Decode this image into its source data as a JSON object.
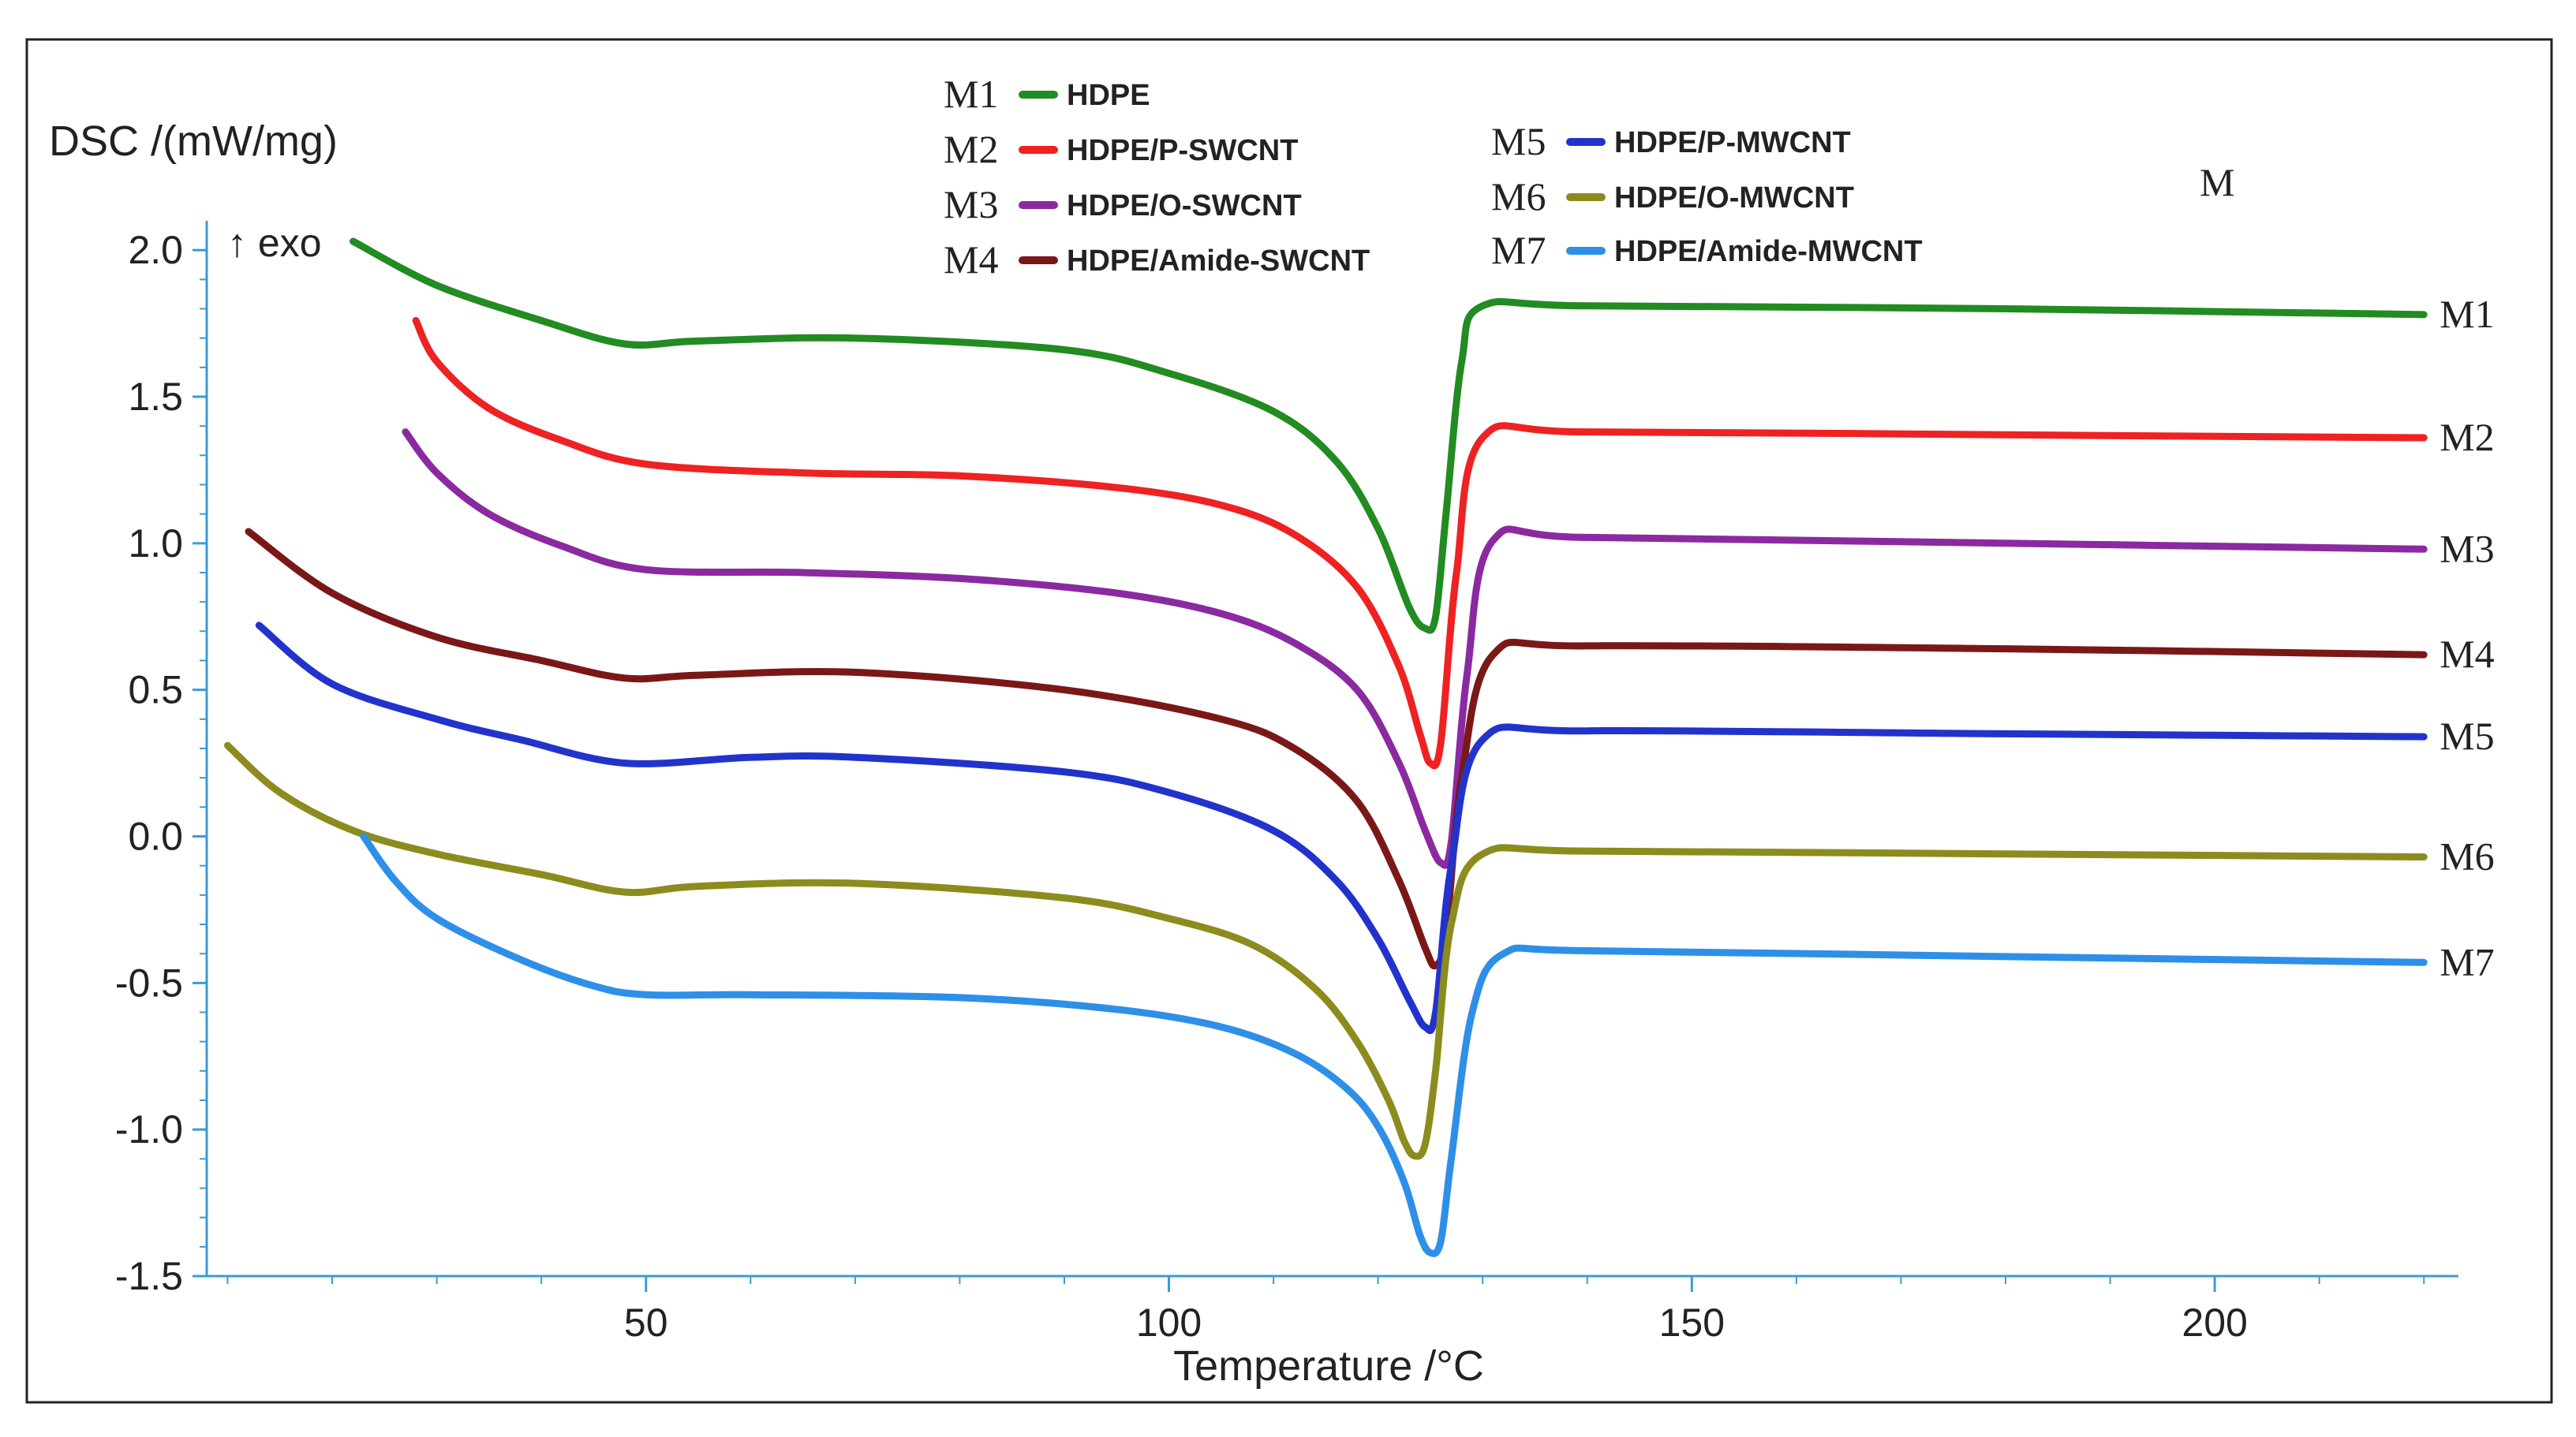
{
  "chart_data": {
    "type": "line",
    "title": "",
    "xlabel": "Temperature /°C",
    "ylabel": "DSC /(mW/mg)",
    "annotation_exo": "↑ exo",
    "panel_label": "M",
    "xlim": [
      8,
      223
    ],
    "ylim": [
      -1.5,
      2.1
    ],
    "x_ticks": [
      50,
      100,
      150,
      200
    ],
    "x_tick_labels": [
      "50",
      "100",
      "150",
      "200"
    ],
    "y_ticks": [
      2.0,
      1.5,
      1.0,
      0.5,
      0.0,
      -0.5,
      -1.0,
      -1.5
    ],
    "y_tick_labels": [
      "2.0",
      "1.5",
      "1.0",
      "0.5",
      "0.0",
      "-0.5",
      "-1.0",
      "-1.5"
    ],
    "series": [
      {
        "code": "M1",
        "name": "HDPE",
        "color": "#228B22",
        "x": [
          22,
          30,
          40,
          48,
          55,
          70,
          90,
          100,
          110,
          116,
          120,
          123,
          124.5,
          125.5,
          126.5,
          128,
          130,
          140,
          180,
          220
        ],
        "y": [
          2.03,
          1.88,
          1.76,
          1.68,
          1.69,
          1.7,
          1.66,
          1.58,
          1.45,
          1.28,
          1.05,
          0.78,
          0.71,
          0.75,
          1.1,
          1.62,
          1.81,
          1.81,
          1.8,
          1.78
        ]
      },
      {
        "code": "M2",
        "name": "HDPE/P-SWCNT",
        "color": "#EE2222",
        "x": [
          28,
          30,
          35,
          42,
          50,
          65,
          80,
          95,
          105,
          112,
          118,
          122,
          124,
          125,
          126,
          127.5,
          130,
          140,
          180,
          220
        ],
        "y": [
          1.76,
          1.62,
          1.46,
          1.35,
          1.27,
          1.24,
          1.23,
          1.19,
          1.13,
          1.03,
          0.85,
          0.58,
          0.35,
          0.25,
          0.32,
          0.9,
          1.36,
          1.38,
          1.37,
          1.36
        ]
      },
      {
        "code": "M3",
        "name": "HDPE/O-SWCNT",
        "color": "#8B2AA0",
        "x": [
          27,
          30,
          35,
          42,
          50,
          65,
          80,
          95,
          105,
          112,
          118,
          122,
          124.5,
          126,
          127,
          128.5,
          131,
          140,
          180,
          220
        ],
        "y": [
          1.38,
          1.24,
          1.1,
          0.99,
          0.91,
          0.9,
          0.88,
          0.83,
          0.76,
          0.66,
          0.5,
          0.25,
          0.02,
          -0.09,
          -0.02,
          0.55,
          1.01,
          1.02,
          1.0,
          0.98
        ]
      },
      {
        "code": "M4",
        "name": "HDPE/Amide-SWCNT",
        "color": "#7A1818",
        "x": [
          12,
          20,
          30,
          40,
          48,
          55,
          70,
          90,
          105,
          112,
          118,
          122,
          124.5,
          125.5,
          126.5,
          128,
          131,
          140,
          180,
          220
        ],
        "y": [
          1.04,
          0.83,
          0.68,
          0.6,
          0.54,
          0.55,
          0.56,
          0.5,
          0.4,
          0.3,
          0.12,
          -0.15,
          -0.38,
          -0.44,
          -0.33,
          0.2,
          0.62,
          0.65,
          0.64,
          0.62
        ]
      },
      {
        "code": "M5",
        "name": "HDPE/P-MWCNT",
        "color": "#2233CC",
        "x": [
          13,
          20,
          30,
          38,
          48,
          60,
          70,
          90,
          100,
          110,
          116,
          120,
          123,
          124.5,
          125.5,
          127,
          130,
          140,
          180,
          220
        ],
        "y": [
          0.72,
          0.52,
          0.4,
          0.33,
          0.25,
          0.27,
          0.27,
          0.22,
          0.15,
          0.02,
          -0.15,
          -0.35,
          -0.56,
          -0.65,
          -0.6,
          -0.1,
          0.33,
          0.36,
          0.35,
          0.34
        ]
      },
      {
        "code": "M6",
        "name": "HDPE/O-MWCNT",
        "color": "#8C8C1E",
        "x": [
          10,
          15,
          22,
          30,
          40,
          48,
          55,
          70,
          90,
          100,
          108,
          114,
          118,
          121,
          122.5,
          123.5,
          124.5,
          125.5,
          127,
          130,
          140,
          180,
          220
        ],
        "y": [
          0.31,
          0.15,
          0.02,
          -0.06,
          -0.13,
          -0.19,
          -0.17,
          -0.16,
          -0.21,
          -0.28,
          -0.37,
          -0.52,
          -0.7,
          -0.9,
          -1.04,
          -1.09,
          -1.05,
          -0.8,
          -0.3,
          -0.06,
          -0.05,
          -0.06,
          -0.07
        ]
      },
      {
        "code": "M7",
        "name": "HDPE/Amide-MWCNT",
        "color": "#2E8FE8",
        "x": [
          23,
          26,
          30,
          38,
          45,
          50,
          60,
          80,
          95,
          105,
          112,
          117,
          120,
          122.5,
          124,
          125,
          126,
          127,
          129,
          132,
          140,
          180,
          220
        ],
        "y": [
          0.0,
          -0.15,
          -0.28,
          -0.42,
          -0.51,
          -0.54,
          -0.54,
          -0.55,
          -0.59,
          -0.65,
          -0.74,
          -0.86,
          -0.99,
          -1.18,
          -1.36,
          -1.42,
          -1.38,
          -1.1,
          -0.6,
          -0.4,
          -0.39,
          -0.41,
          -0.43
        ]
      }
    ]
  }
}
